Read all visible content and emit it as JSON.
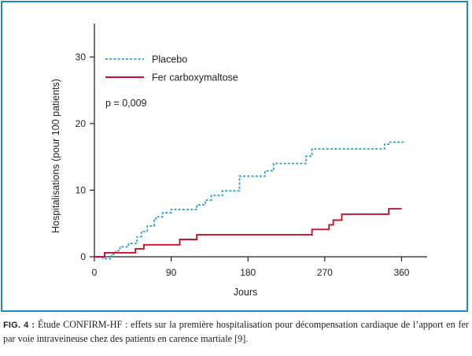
{
  "colors": {
    "frame": "#1e88c7",
    "placebo": "#2a9fd6",
    "ferric": "#c8102e",
    "axis": "#222222"
  },
  "chart_data": {
    "type": "line",
    "title": "",
    "xlabel": "Jours",
    "ylabel": "Hospitalisations (pour 100 patients)",
    "xlim": [
      0,
      390
    ],
    "ylim": [
      0,
      35
    ],
    "xticks": [
      0,
      90,
      180,
      270,
      360
    ],
    "yticks": [
      0,
      10,
      20,
      30
    ],
    "x_tick_labels": [
      "0",
      "90",
      "180",
      "270",
      "360"
    ],
    "y_tick_labels": [
      "0",
      "10",
      "20",
      "30"
    ],
    "legend_position": "top-left",
    "annotation": "p = 0,009",
    "series": [
      {
        "name": "Placebo",
        "style": "dotted",
        "color": "#2a9fd6",
        "points": [
          [
            0,
            0
          ],
          [
            10,
            0
          ],
          [
            10,
            -0.3
          ],
          [
            20,
            -0.3
          ],
          [
            20,
            0.4
          ],
          [
            25,
            0.4
          ],
          [
            25,
            0.9
          ],
          [
            30,
            0.9
          ],
          [
            30,
            1.5
          ],
          [
            40,
            1.5
          ],
          [
            40,
            2.0
          ],
          [
            50,
            2.0
          ],
          [
            50,
            3.0
          ],
          [
            55,
            3.0
          ],
          [
            55,
            3.8
          ],
          [
            62,
            3.8
          ],
          [
            62,
            4.6
          ],
          [
            70,
            4.6
          ],
          [
            70,
            5.5
          ],
          [
            72,
            5.5
          ],
          [
            72,
            6.0
          ],
          [
            80,
            6.0
          ],
          [
            80,
            6.6
          ],
          [
            90,
            6.6
          ],
          [
            90,
            7.1
          ],
          [
            120,
            7.1
          ],
          [
            120,
            7.8
          ],
          [
            130,
            7.8
          ],
          [
            130,
            8.5
          ],
          [
            137,
            8.5
          ],
          [
            137,
            9.2
          ],
          [
            150,
            9.2
          ],
          [
            150,
            9.9
          ],
          [
            170,
            9.9
          ],
          [
            170,
            12.1
          ],
          [
            200,
            12.1
          ],
          [
            200,
            12.9
          ],
          [
            210,
            12.9
          ],
          [
            210,
            14.0
          ],
          [
            248,
            14.0
          ],
          [
            248,
            15.1
          ],
          [
            255,
            15.1
          ],
          [
            255,
            16.2
          ],
          [
            340,
            16.2
          ],
          [
            340,
            16.9
          ],
          [
            345,
            16.9
          ],
          [
            345,
            17.2
          ],
          [
            365,
            17.2
          ]
        ]
      },
      {
        "name": "Fer carboxymaltose",
        "style": "solid",
        "color": "#c8102e",
        "points": [
          [
            0,
            0
          ],
          [
            12,
            0
          ],
          [
            12,
            0.6
          ],
          [
            48,
            0.6
          ],
          [
            48,
            1.2
          ],
          [
            58,
            1.2
          ],
          [
            58,
            1.8
          ],
          [
            100,
            1.8
          ],
          [
            100,
            2.6
          ],
          [
            120,
            2.6
          ],
          [
            120,
            3.3
          ],
          [
            255,
            3.3
          ],
          [
            255,
            4.1
          ],
          [
            275,
            4.1
          ],
          [
            275,
            4.8
          ],
          [
            280,
            4.8
          ],
          [
            280,
            5.5
          ],
          [
            290,
            5.5
          ],
          [
            290,
            6.4
          ],
          [
            345,
            6.4
          ],
          [
            345,
            7.2
          ],
          [
            360,
            7.2
          ]
        ]
      }
    ]
  },
  "caption": {
    "label": "FIG. 4 :",
    "text": " Étude CONFIRM-HF : effets sur la première hospitalisation pour décompensation cardiaque de l’apport en fer par voie intraveineuse chez des patients en carence martiale [9]."
  }
}
